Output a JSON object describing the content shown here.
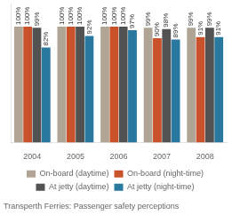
{
  "chart_data": {
    "type": "bar",
    "title": "Transperth Ferries: Passenger safety perceptions",
    "categories": [
      "2004",
      "2005",
      "2006",
      "2007",
      "2008"
    ],
    "series": [
      {
        "name": "On-board (daytime)",
        "color": "#b0a494",
        "values": [
          100,
          100,
          100,
          99,
          99
        ],
        "value_labels": [
          "100%",
          "100%",
          "100%",
          "99%",
          "99%"
        ]
      },
      {
        "name": "On-board (night-time)",
        "color": "#c9522a",
        "values": [
          100,
          100,
          100,
          90,
          91
        ],
        "value_labels": [
          "100%",
          "100%",
          "100%",
          "90%",
          "91%"
        ]
      },
      {
        "name": "At jetty (daytime)",
        "color": "#525252",
        "values": [
          99,
          100,
          100,
          98,
          99
        ],
        "value_labels": [
          "99%",
          "100%",
          "100%",
          "98%",
          "99%"
        ]
      },
      {
        "name": "At jetty (night-time)",
        "color": "#2878a0",
        "values": [
          82,
          92,
          97,
          89,
          91
        ],
        "value_labels": [
          "82%",
          "92%",
          "97%",
          "89%",
          "91%"
        ]
      }
    ],
    "ylim": [
      0,
      120
    ],
    "grid": false,
    "legend": "bottom",
    "data_labels": true,
    "tick_labels": "x"
  }
}
